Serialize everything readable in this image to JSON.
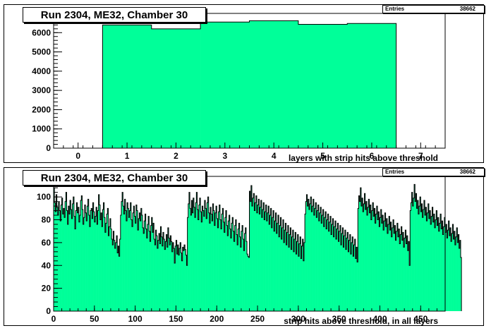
{
  "chart_data": [
    {
      "type": "bar",
      "title": "Run 2304, ME32, Chamber 30",
      "stats": {
        "label": "Entries",
        "value": "38662"
      },
      "xlabel": "layers with strip hits above threshold",
      "ylabel": "",
      "xlim": [
        -0.5,
        7.5
      ],
      "ylim": [
        0,
        7000
      ],
      "x_ticks": [
        "0",
        "1",
        "2",
        "3",
        "4",
        "5",
        "6",
        "7"
      ],
      "y_ticks": [
        "0",
        "1000",
        "2000",
        "3000",
        "4000",
        "5000",
        "6000"
      ],
      "fill_color": "#00ff99",
      "bin_width": 1,
      "categories": [
        "1",
        "2",
        "3",
        "4",
        "5",
        "6"
      ],
      "values": [
        6400,
        6200,
        6550,
        6620,
        6430,
        6480
      ]
    },
    {
      "type": "bar",
      "title": "Run 2304, ME32, Chamber 30",
      "stats": {
        "label": "Entries",
        "value": "38662"
      },
      "xlabel": "strip hits above threshold, in all layers",
      "ylabel": "",
      "xlim": [
        0,
        480
      ],
      "ylim": [
        0,
        118
      ],
      "x_ticks": [
        "0",
        "50",
        "100",
        "150",
        "200",
        "250",
        "300",
        "350",
        "400",
        "450"
      ],
      "y_ticks": [
        "0",
        "20",
        "40",
        "60",
        "80",
        "100"
      ],
      "fill_color": "#00ff99",
      "bin_width": 1,
      "values": [
        108,
        95,
        87,
        102,
        91,
        84,
        96,
        88,
        79,
        93,
        99,
        85,
        90,
        82,
        96,
        104,
        88,
        76,
        92,
        85,
        97,
        89,
        81,
        94,
        100,
        83,
        72,
        88,
        95,
        86,
        91,
        78,
        84,
        97,
        101,
        89,
        76,
        82,
        93,
        86,
        79,
        92,
        98,
        84,
        74,
        88,
        90,
        81,
        95,
        87,
        78,
        83,
        91,
        76,
        88,
        102,
        93,
        80,
        86,
        74,
        89,
        95,
        82,
        69,
        77,
        85,
        90,
        66,
        74,
        81,
        72,
        63,
        58,
        70,
        62,
        55,
        60,
        66,
        51,
        57,
        48,
        63,
        84,
        96,
        104,
        92,
        85,
        98,
        88,
        79,
        95,
        90,
        82,
        88,
        95,
        80,
        74,
        86,
        92,
        83,
        77,
        93,
        88,
        71,
        81,
        86,
        79,
        90,
        84,
        73,
        68,
        79,
        85,
        72,
        64,
        76,
        83,
        70,
        61,
        75,
        82,
        69,
        77,
        63,
        58,
        71,
        66,
        55,
        62,
        68,
        59,
        74,
        65,
        57,
        69,
        63,
        54,
        61,
        67,
        56,
        73,
        64,
        58,
        66,
        61,
        52,
        60,
        55,
        42,
        57,
        62,
        50,
        58,
        49,
        55,
        60,
        51,
        44,
        56,
        53,
        58,
        54,
        49,
        40,
        82,
        94,
        104,
        90,
        84,
        97,
        86,
        99,
        91,
        82,
        95,
        104,
        89,
        80,
        93,
        99,
        87,
        78,
        92,
        88,
        83,
        97,
        90,
        81,
        95,
        100,
        86,
        77,
        91,
        85,
        79,
        94,
        88,
        75,
        86,
        92,
        81,
        73,
        87,
        93,
        80,
        72,
        85,
        90,
        78,
        69,
        82,
        88,
        75,
        66,
        79,
        84,
        72,
        64,
        77,
        82,
        70,
        61,
        75,
        80,
        67,
        58,
        72,
        77,
        65,
        56,
        70,
        75,
        63,
        53,
        68,
        73,
        61,
        50,
        48,
        47,
        105,
        96,
        110,
        92,
        99,
        103,
        88,
        95,
        101,
        86,
        93,
        98,
        85,
        91,
        97,
        82,
        89,
        95,
        80,
        87,
        93,
        79,
        86,
        92,
        76,
        84,
        90,
        73,
        82,
        88,
        70,
        79,
        86,
        68,
        77,
        84,
        65,
        75,
        82,
        63,
        73,
        80,
        60,
        71,
        77,
        58,
        69,
        75,
        56,
        67,
        73,
        54,
        65,
        71,
        52,
        63,
        69,
        50,
        61,
        67,
        48,
        59,
        65,
        46,
        57,
        63,
        44,
        60,
        85,
        96,
        102,
        92,
        98,
        89,
        94,
        100,
        87,
        92,
        98,
        84,
        90,
        95,
        82,
        88,
        93,
        79,
        86,
        91,
        77,
        84,
        89,
        74,
        82,
        87,
        72,
        80,
        85,
        70,
        78,
        83,
        67,
        76,
        81,
        65,
        74,
        79,
        63,
        72,
        77,
        61,
        70,
        75,
        58,
        68,
        73,
        56,
        66,
        71,
        54,
        64,
        69,
        52,
        62,
        67,
        50,
        60,
        65,
        48,
        58,
        63,
        46,
        56,
        43,
        90,
        101,
        96,
        108,
        92,
        99,
        87,
        94,
        103,
        89,
        96,
        84,
        91,
        98,
        86,
        93,
        80,
        88,
        95,
        83,
        90,
        77,
        85,
        92,
        80,
        87,
        74,
        82,
        89,
        77,
        84,
        71,
        79,
        86,
        74,
        81,
        68,
        76,
        83,
        71,
        78,
        65,
        73,
        80,
        68,
        75,
        62,
        70,
        77,
        65,
        72,
        59,
        67,
        74,
        62,
        69,
        56,
        64,
        71,
        59,
        66,
        53,
        61,
        40,
        88,
        95,
        104,
        92,
        99,
        111,
        96,
        103,
        90,
        97,
        85,
        92,
        100,
        87,
        94,
        82,
        89,
        97,
        84,
        91,
        79,
        86,
        94,
        81,
        88,
        76,
        83,
        91,
        78,
        85,
        73,
        80,
        88,
        75,
        82,
        70,
        77,
        85,
        72,
        79,
        67,
        74,
        82,
        69,
        76,
        64,
        71,
        79,
        66,
        73,
        61,
        68,
        76,
        63,
        70,
        58,
        65,
        73,
        60,
        67,
        55,
        62,
        47
      ]
    }
  ]
}
